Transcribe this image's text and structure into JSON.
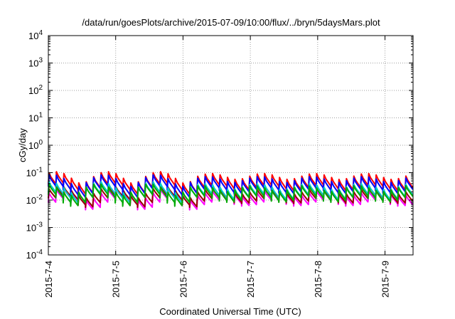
{
  "chart_data": {
    "type": "line",
    "title": "/data/run/goesPlots/archive/2015-07-09/10:00/flux/../bryn/5daysMars.plot",
    "xlabel": "Coordinated Universal Time (UTC)",
    "ylabel": "cGy/day",
    "y_scale": "log",
    "ylim": [
      0.0001,
      10000
    ],
    "xlim": [
      "2015-07-04 00:00",
      "2015-07-09 10:00"
    ],
    "grid": true,
    "legend": "none",
    "y_ticks": [
      {
        "base": "10",
        "exp": "-4"
      },
      {
        "base": "10",
        "exp": "-3"
      },
      {
        "base": "10",
        "exp": "-2"
      },
      {
        "base": "10",
        "exp": "-1"
      },
      {
        "base": "10",
        "exp": "0"
      },
      {
        "base": "10",
        "exp": "1"
      },
      {
        "base": "10",
        "exp": "2"
      },
      {
        "base": "10",
        "exp": "3"
      },
      {
        "base": "10",
        "exp": "4"
      }
    ],
    "x_ticks": [
      "2015-7-4",
      "2015-7-5",
      "2015-7-6",
      "2015-7-7",
      "2015-7-8",
      "2015-7-9"
    ],
    "series_colors": [
      "#ff00ff",
      "#990000",
      "#ff0000",
      "#0000ff",
      "#00cccc",
      "#00aa00"
    ],
    "series": [
      {
        "color": "#ff00ff",
        "peak": 0.018,
        "trough": 0.008
      },
      {
        "color": "#990000",
        "peak": 0.022,
        "trough": 0.0098
      },
      {
        "color": "#ff0000",
        "peak": 0.075,
        "trough": 0.028
      },
      {
        "color": "#0000ff",
        "peak": 0.058,
        "trough": 0.022
      },
      {
        "color": "#00cccc",
        "peak": 0.032,
        "trough": 0.013
      },
      {
        "color": "#00aa00",
        "peak": 0.027,
        "trough": 0.011
      }
    ]
  }
}
